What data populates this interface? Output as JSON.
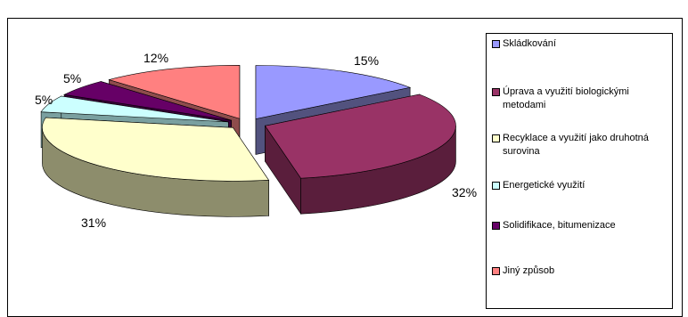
{
  "chart_data": {
    "type": "pie",
    "title": "",
    "slices": [
      {
        "label": "Skládkování",
        "value": 15,
        "display": "15%",
        "color": "#9999ff",
        "side": "#52527e"
      },
      {
        "label": "Úprava a využití biologickými metodami",
        "value": 32,
        "display": "32%",
        "color": "#993366",
        "side": "#5a1e3c"
      },
      {
        "label": "Recyklace a využití jako druhotná surovina",
        "value": 31,
        "display": "31%",
        "color": "#ffffcc",
        "side": "#8d8d6c"
      },
      {
        "label": "Energetické využití",
        "value": 5,
        "display": "5%",
        "color": "#ccffff",
        "side": "#7aa0a0"
      },
      {
        "label": "Solidifikace, bitumenizace",
        "value": 5,
        "display": "5%",
        "color": "#660066",
        "side": "#3a003a"
      },
      {
        "label": "Jiný způsob",
        "value": 12,
        "display": "12%",
        "color": "#ff8080",
        "side": "#8e4c4c"
      }
    ],
    "legend_position": "right",
    "style": "exploded 3D pie"
  }
}
